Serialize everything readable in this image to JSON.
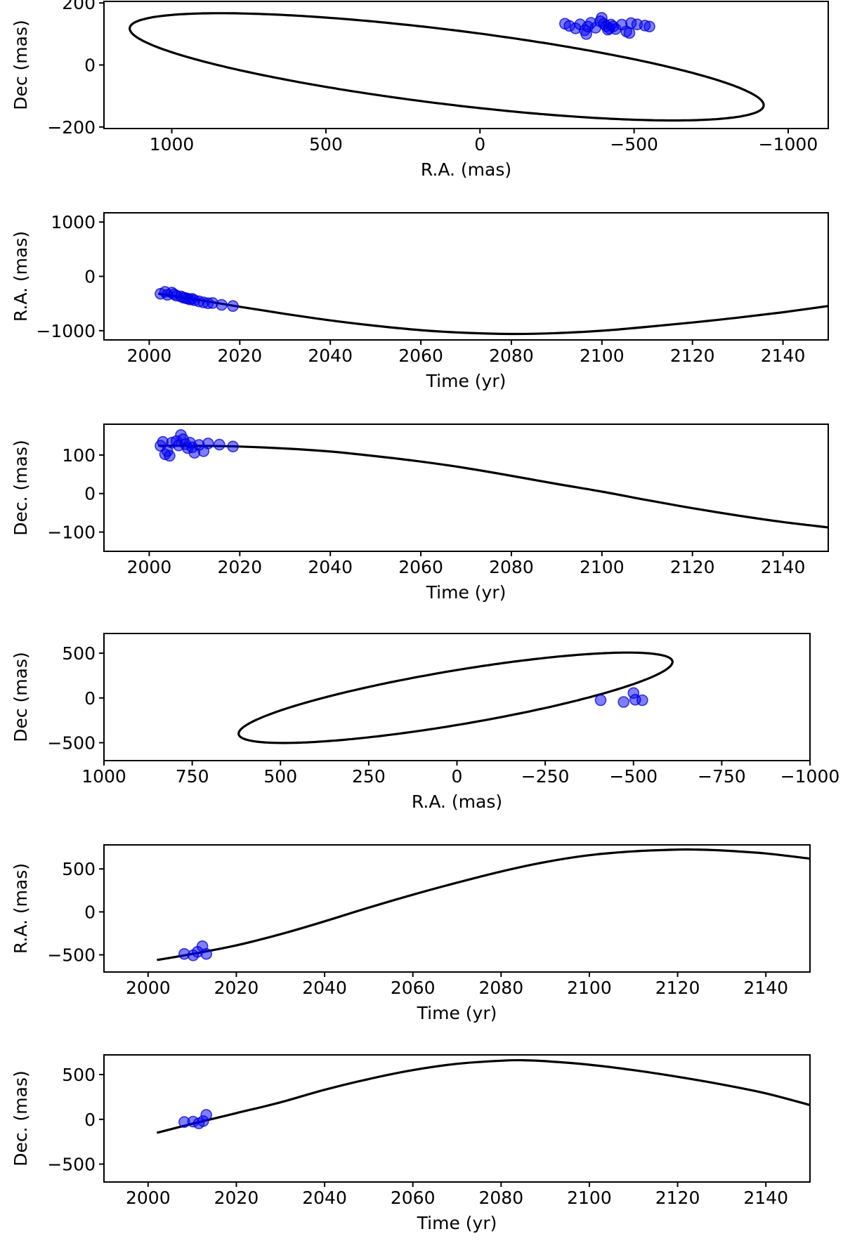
{
  "chart_data": [
    {
      "id": "p1",
      "type": "scatter",
      "xlabel": "R.A. (mas)",
      "ylabel": "Dec (mas)",
      "xlim": [
        1220,
        -1130
      ],
      "ylim": [
        -205,
        205
      ],
      "xticks": [
        {
          "v": 1000,
          "label": "1000"
        },
        {
          "v": 500,
          "label": "500"
        },
        {
          "v": 0,
          "label": "0"
        },
        {
          "v": -500,
          "label": "−500"
        },
        {
          "v": -1000,
          "label": "−1000"
        }
      ],
      "yticks": [
        {
          "v": -200,
          "label": "−200"
        },
        {
          "v": 0,
          "label": "0"
        },
        {
          "v": 200,
          "label": "200"
        }
      ],
      "curve": {
        "kind": "ellipse",
        "cx": 108,
        "cy": -6,
        "a": 1036,
        "b": 120,
        "rot": 6.95,
        "color": "#000000"
      },
      "points": [
        {
          "x": -276,
          "y": 133
        },
        {
          "x": -290,
          "y": 126
        },
        {
          "x": -310,
          "y": 118
        },
        {
          "x": -325,
          "y": 131
        },
        {
          "x": -340,
          "y": 112
        },
        {
          "x": -345,
          "y": 100
        },
        {
          "x": -350,
          "y": 124
        },
        {
          "x": -360,
          "y": 136
        },
        {
          "x": -375,
          "y": 120
        },
        {
          "x": -390,
          "y": 141
        },
        {
          "x": -395,
          "y": 152
        },
        {
          "x": -402,
          "y": 133
        },
        {
          "x": -410,
          "y": 125
        },
        {
          "x": -415,
          "y": 114
        },
        {
          "x": -420,
          "y": 118
        },
        {
          "x": -425,
          "y": 130
        },
        {
          "x": -432,
          "y": 124
        },
        {
          "x": -440,
          "y": 116
        },
        {
          "x": -460,
          "y": 130
        },
        {
          "x": -475,
          "y": 108
        },
        {
          "x": -485,
          "y": 103
        },
        {
          "x": -490,
          "y": 135
        },
        {
          "x": -510,
          "y": 131
        },
        {
          "x": -535,
          "y": 127
        },
        {
          "x": -550,
          "y": 124
        }
      ],
      "point_color": "#0000ff"
    },
    {
      "id": "p2",
      "type": "line",
      "xlabel": "Time (yr)",
      "ylabel": "R.A. (mas)",
      "xlim": [
        1990,
        2150
      ],
      "ylim": [
        -1170,
        1170
      ],
      "xticks": [
        {
          "v": 2000,
          "label": "2000"
        },
        {
          "v": 2020,
          "label": "2020"
        },
        {
          "v": 2040,
          "label": "2040"
        },
        {
          "v": 2060,
          "label": "2060"
        },
        {
          "v": 2080,
          "label": "2080"
        },
        {
          "v": 2100,
          "label": "2100"
        },
        {
          "v": 2120,
          "label": "2120"
        },
        {
          "v": 2140,
          "label": "2140"
        }
      ],
      "yticks": [
        {
          "v": -1000,
          "label": "−1000"
        },
        {
          "v": 0,
          "label": "0"
        },
        {
          "v": 1000,
          "label": "1000"
        }
      ],
      "curve": {
        "kind": "polyline",
        "x": [
          2002,
          2010,
          2020,
          2030,
          2040,
          2050,
          2060,
          2070,
          2080,
          2090,
          2100,
          2110,
          2120,
          2130,
          2140,
          2150
        ],
        "y": [
          -320,
          -420,
          -560,
          -690,
          -810,
          -910,
          -990,
          -1040,
          -1060,
          -1045,
          -1000,
          -930,
          -850,
          -760,
          -660,
          -545
        ],
        "color": "#000000"
      },
      "points": [
        {
          "x": 2002.5,
          "y": -320
        },
        {
          "x": 2003.5,
          "y": -285
        },
        {
          "x": 2004,
          "y": -340
        },
        {
          "x": 2005,
          "y": -300
        },
        {
          "x": 2005.5,
          "y": -330
        },
        {
          "x": 2006,
          "y": -355
        },
        {
          "x": 2007,
          "y": -370
        },
        {
          "x": 2007.5,
          "y": -390
        },
        {
          "x": 2008,
          "y": -400
        },
        {
          "x": 2008.5,
          "y": -410
        },
        {
          "x": 2009,
          "y": -425
        },
        {
          "x": 2009.5,
          "y": -415
        },
        {
          "x": 2010,
          "y": -440
        },
        {
          "x": 2011,
          "y": -460
        },
        {
          "x": 2012,
          "y": -480
        },
        {
          "x": 2013,
          "y": -495
        },
        {
          "x": 2014,
          "y": -490
        },
        {
          "x": 2016,
          "y": -525
        },
        {
          "x": 2018.5,
          "y": -545
        }
      ],
      "point_color": "#0000ff"
    },
    {
      "id": "p3",
      "type": "line",
      "xlabel": "Time (yr)",
      "ylabel": "Dec. (mas)",
      "xlim": [
        1990,
        2150
      ],
      "ylim": [
        -150,
        180
      ],
      "xticks": [
        {
          "v": 2000,
          "label": "2000"
        },
        {
          "v": 2020,
          "label": "2020"
        },
        {
          "v": 2040,
          "label": "2040"
        },
        {
          "v": 2060,
          "label": "2060"
        },
        {
          "v": 2080,
          "label": "2080"
        },
        {
          "v": 2100,
          "label": "2100"
        },
        {
          "v": 2120,
          "label": "2120"
        },
        {
          "v": 2140,
          "label": "2140"
        }
      ],
      "yticks": [
        {
          "v": -100,
          "label": "−100"
        },
        {
          "v": 0,
          "label": "0"
        },
        {
          "v": 100,
          "label": "100"
        }
      ],
      "curve": {
        "kind": "polyline",
        "x": [
          2002,
          2010,
          2020,
          2030,
          2040,
          2050,
          2060,
          2070,
          2080,
          2090,
          2100,
          2110,
          2120,
          2130,
          2140,
          2150
        ],
        "y": [
          124,
          124,
          122,
          117,
          109,
          97,
          83,
          66,
          46,
          25,
          5,
          -17,
          -38,
          -57,
          -74,
          -88
        ],
        "color": "#000000"
      },
      "points": [
        {
          "x": 2002.5,
          "y": 124
        },
        {
          "x": 2003,
          "y": 134
        },
        {
          "x": 2003.5,
          "y": 102
        },
        {
          "x": 2004,
          "y": 110
        },
        {
          "x": 2004.5,
          "y": 98
        },
        {
          "x": 2005,
          "y": 132
        },
        {
          "x": 2006,
          "y": 136
        },
        {
          "x": 2006.5,
          "y": 125
        },
        {
          "x": 2007,
          "y": 152
        },
        {
          "x": 2007.5,
          "y": 141
        },
        {
          "x": 2008,
          "y": 128
        },
        {
          "x": 2008.5,
          "y": 118
        },
        {
          "x": 2009,
          "y": 132
        },
        {
          "x": 2009.5,
          "y": 120
        },
        {
          "x": 2010,
          "y": 106
        },
        {
          "x": 2011,
          "y": 126
        },
        {
          "x": 2012,
          "y": 110
        },
        {
          "x": 2013,
          "y": 130
        },
        {
          "x": 2015.5,
          "y": 127
        },
        {
          "x": 2018.5,
          "y": 122
        }
      ],
      "point_color": "#0000ff"
    },
    {
      "id": "p4",
      "type": "scatter",
      "xlabel": "R.A. (mas)",
      "ylabel": "Dec (mas)",
      "xlim": [
        1000,
        -1000
      ],
      "ylim": [
        -700,
        720
      ],
      "xticks": [
        {
          "v": 1000,
          "label": "1000"
        },
        {
          "v": 750,
          "label": "750"
        },
        {
          "v": 500,
          "label": "500"
        },
        {
          "v": 250,
          "label": "250"
        },
        {
          "v": 0,
          "label": "0"
        },
        {
          "v": -250,
          "label": "−250"
        },
        {
          "v": -500,
          "label": "−500"
        },
        {
          "v": -750,
          "label": "−750"
        },
        {
          "v": -1000,
          "label": "−1000"
        }
      ],
      "yticks": [
        {
          "v": -500,
          "label": "−500"
        },
        {
          "v": 0,
          "label": "0"
        },
        {
          "v": 500,
          "label": "500"
        }
      ],
      "curve": {
        "kind": "ellipse",
        "cx": 4,
        "cy": 2,
        "a": 755,
        "b": 250,
        "rot": -38,
        "color": "#000000"
      },
      "points": [
        {
          "x": -407,
          "y": -25
        },
        {
          "x": -472,
          "y": -45
        },
        {
          "x": -500,
          "y": 55
        },
        {
          "x": -505,
          "y": -20
        },
        {
          "x": -525,
          "y": -25
        }
      ],
      "point_color": "#0000ff"
    },
    {
      "id": "p5",
      "type": "line",
      "xlabel": "Time (yr)",
      "ylabel": "R.A. (mas)",
      "xlim": [
        1990,
        2150
      ],
      "ylim": [
        -700,
        780
      ],
      "xticks": [
        {
          "v": 2000,
          "label": "2000"
        },
        {
          "v": 2020,
          "label": "2020"
        },
        {
          "v": 2040,
          "label": "2040"
        },
        {
          "v": 2060,
          "label": "2060"
        },
        {
          "v": 2080,
          "label": "2080"
        },
        {
          "v": 2100,
          "label": "2100"
        },
        {
          "v": 2120,
          "label": "2120"
        },
        {
          "v": 2140,
          "label": "2140"
        }
      ],
      "yticks": [
        {
          "v": -500,
          "label": "−500"
        },
        {
          "v": 0,
          "label": "0"
        },
        {
          "v": 500,
          "label": "500"
        }
      ],
      "curve": {
        "kind": "polyline",
        "x": [
          2002,
          2010,
          2020,
          2030,
          2040,
          2050,
          2060,
          2070,
          2080,
          2090,
          2100,
          2110,
          2120,
          2124,
          2130,
          2140,
          2150
        ],
        "y": [
          -560,
          -490,
          -390,
          -260,
          -110,
          50,
          200,
          340,
          470,
          580,
          660,
          705,
          725,
          725,
          715,
          680,
          620
        ],
        "color": "#000000"
      },
      "points": [
        {
          "x": 2008.2,
          "y": -490
        },
        {
          "x": 2010.2,
          "y": -505
        },
        {
          "x": 2011.2,
          "y": -465
        },
        {
          "x": 2012.3,
          "y": -400
        },
        {
          "x": 2013.2,
          "y": -490
        }
      ],
      "point_color": "#0000ff"
    },
    {
      "id": "p6",
      "type": "line",
      "xlabel": "Time (yr)",
      "ylabel": "Dec. (mas)",
      "xlim": [
        1990,
        2150
      ],
      "ylim": [
        -700,
        720
      ],
      "xticks": [
        {
          "v": 2000,
          "label": "2000"
        },
        {
          "v": 2020,
          "label": "2020"
        },
        {
          "v": 2040,
          "label": "2040"
        },
        {
          "v": 2060,
          "label": "2060"
        },
        {
          "v": 2080,
          "label": "2080"
        },
        {
          "v": 2100,
          "label": "2100"
        },
        {
          "v": 2120,
          "label": "2120"
        },
        {
          "v": 2140,
          "label": "2140"
        }
      ],
      "yticks": [
        {
          "v": -500,
          "label": "−500"
        },
        {
          "v": 0,
          "label": "0"
        },
        {
          "v": 500,
          "label": "500"
        }
      ],
      "curve": {
        "kind": "polyline",
        "x": [
          2002,
          2010,
          2020,
          2030,
          2040,
          2050,
          2060,
          2070,
          2080,
          2085,
          2090,
          2100,
          2110,
          2120,
          2130,
          2140,
          2150
        ],
        "y": [
          -150,
          -50,
          70,
          190,
          330,
          450,
          550,
          620,
          655,
          660,
          650,
          610,
          550,
          475,
          390,
          290,
          160
        ],
        "color": "#000000"
      },
      "points": [
        {
          "x": 2008.2,
          "y": -30
        },
        {
          "x": 2010.2,
          "y": -25
        },
        {
          "x": 2011.5,
          "y": -45
        },
        {
          "x": 2012.5,
          "y": -20
        },
        {
          "x": 2013.2,
          "y": 50
        }
      ],
      "point_color": "#0000ff"
    }
  ]
}
